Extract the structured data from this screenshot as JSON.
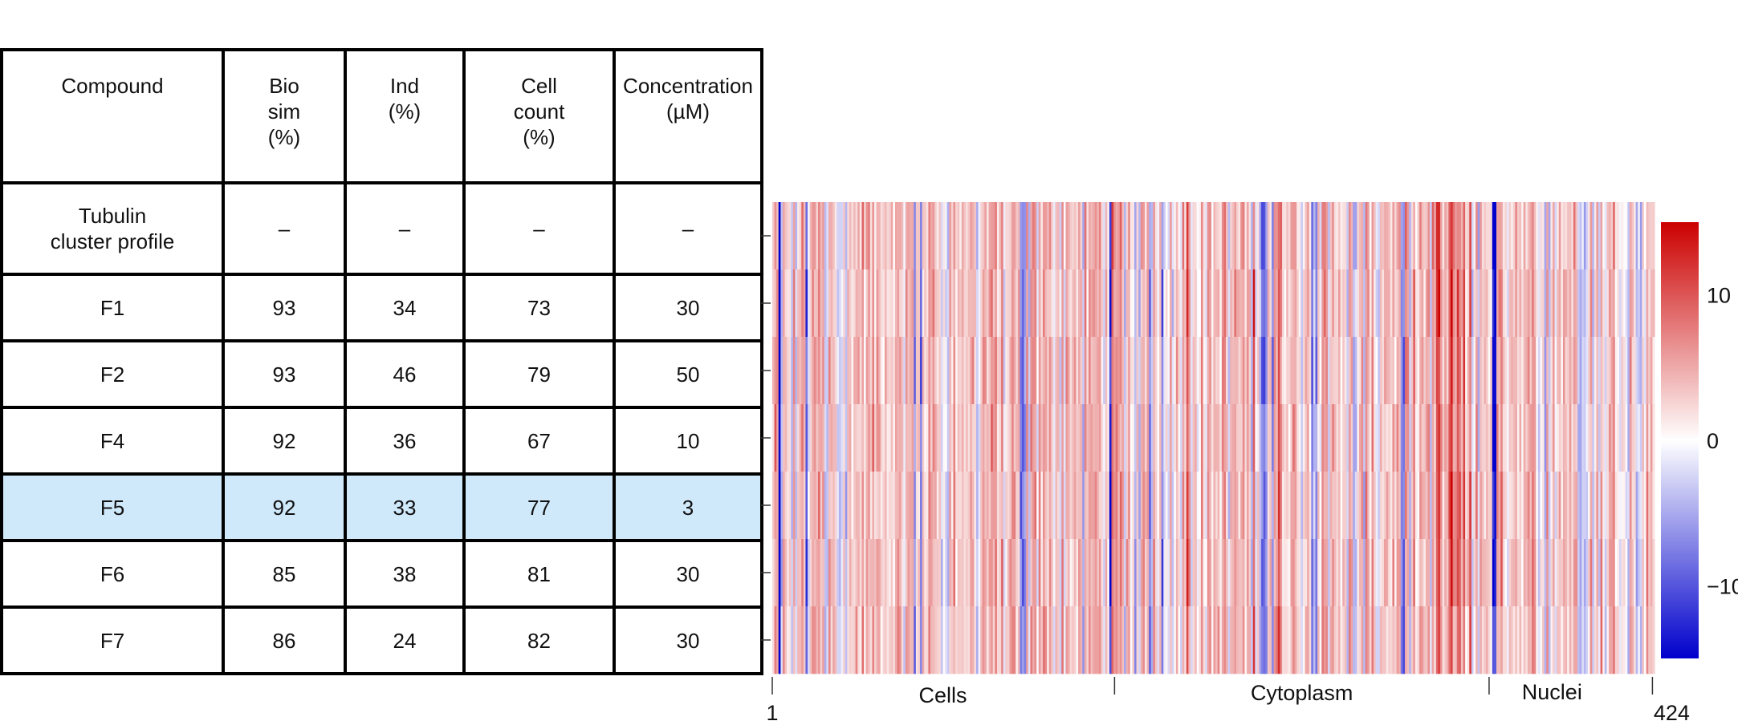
{
  "table": {
    "headers": [
      "Compound",
      "Bio\nsim\n(%)",
      "Ind\n(%)",
      "Cell\ncount\n(%)",
      "Concentration\n(µM)"
    ],
    "rows": [
      {
        "compound": "Tubulin\ncluster profile",
        "biosim": "–",
        "ind": "–",
        "cell_count": "–",
        "concentration": "–",
        "highlight": false
      },
      {
        "compound": "F1",
        "biosim": "93",
        "ind": "34",
        "cell_count": "73",
        "concentration": "30",
        "highlight": false
      },
      {
        "compound": "F2",
        "biosim": "93",
        "ind": "46",
        "cell_count": "79",
        "concentration": "50",
        "highlight": false
      },
      {
        "compound": "F4",
        "biosim": "92",
        "ind": "36",
        "cell_count": "67",
        "concentration": "10",
        "highlight": false
      },
      {
        "compound": "F5",
        "biosim": "92",
        "ind": "33",
        "cell_count": "77",
        "concentration": "3",
        "highlight": true
      },
      {
        "compound": "F6",
        "biosim": "85",
        "ind": "38",
        "cell_count": "81",
        "concentration": "30",
        "highlight": false
      },
      {
        "compound": "F7",
        "biosim": "86",
        "ind": "24",
        "cell_count": "82",
        "concentration": "30",
        "highlight": false
      }
    ],
    "highlight_color": "#cfe9fb"
  },
  "chart_data": {
    "type": "heatmap",
    "rows": [
      "Tubulin cluster profile",
      "F1",
      "F2",
      "F4",
      "F5",
      "F6",
      "F7"
    ],
    "n_features": 424,
    "x_tick_labels": [
      "1",
      "424"
    ],
    "feature_groups": [
      {
        "name": "Cells",
        "start": 1,
        "end": 165
      },
      {
        "name": "Cytoplasm",
        "start": 166,
        "end": 345
      },
      {
        "name": "Nuclei",
        "start": 346,
        "end": 424
      }
    ],
    "colorbar": {
      "min": -15,
      "max": 15,
      "ticks": [
        10,
        0,
        -10
      ],
      "tick_labels": [
        "10",
        "0",
        "−10"
      ],
      "colors": [
        "#0000cc",
        "#ffffff",
        "#cc0000"
      ]
    },
    "dominant_columns": {
      "strong_negative": [
        4,
        163,
        347,
        348
      ],
      "moderate_negative": [
        17,
        69,
        72,
        120,
        121,
        122,
        182,
        188,
        236,
        237,
        238,
        241,
        260,
        262,
        303,
        304
      ],
      "moderate_positive": [
        164,
        200,
        232,
        244,
        320,
        321,
        326,
        327,
        330,
        331,
        333,
        336
      ]
    }
  }
}
